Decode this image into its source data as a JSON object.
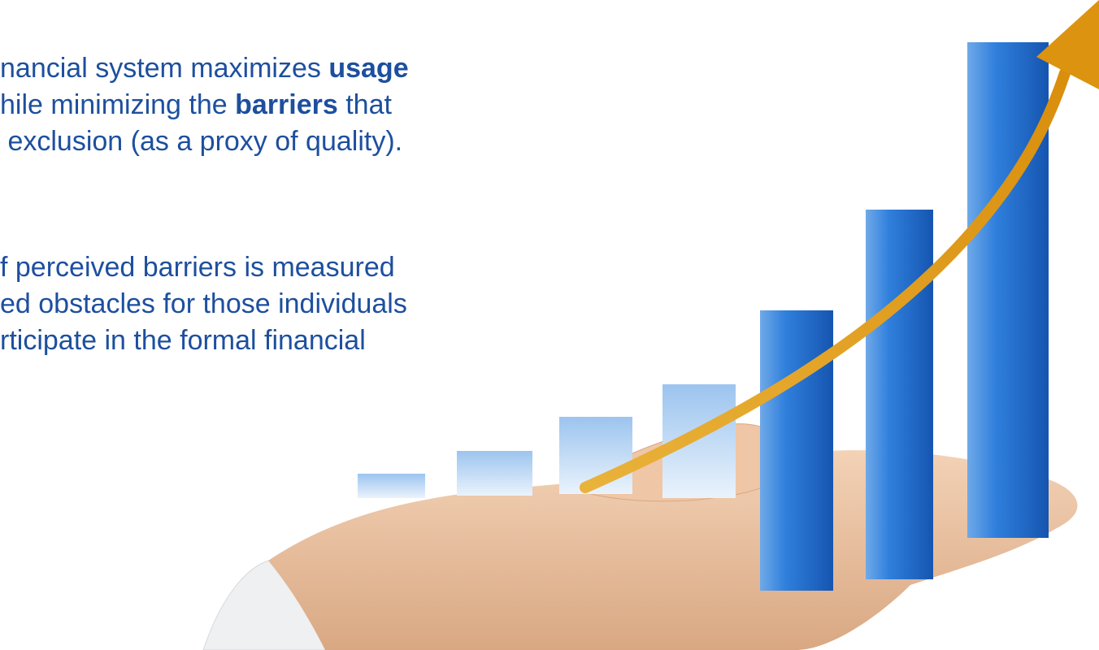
{
  "paragraphs": [
    {
      "lines": [
        [
          {
            "text": "nancial system maximizes ",
            "bold": false
          },
          {
            "text": "usage",
            "bold": true
          }
        ],
        [
          {
            "text": "hile minimizing the ",
            "bold": false
          },
          {
            "text": "barriers",
            "bold": true
          },
          {
            "text": " that",
            "bold": false
          }
        ],
        [
          {
            "text": " exclusion (as a proxy of quality).",
            "bold": false
          }
        ]
      ]
    },
    {
      "lines": [
        [
          {
            "text": "f perceived barriers is measured",
            "bold": false
          }
        ],
        [
          {
            "text": "ed obstacles for those individuals",
            "bold": false
          }
        ],
        [
          {
            "text": "rticipate in the formal financial",
            "bold": false
          }
        ]
      ]
    }
  ]
}
